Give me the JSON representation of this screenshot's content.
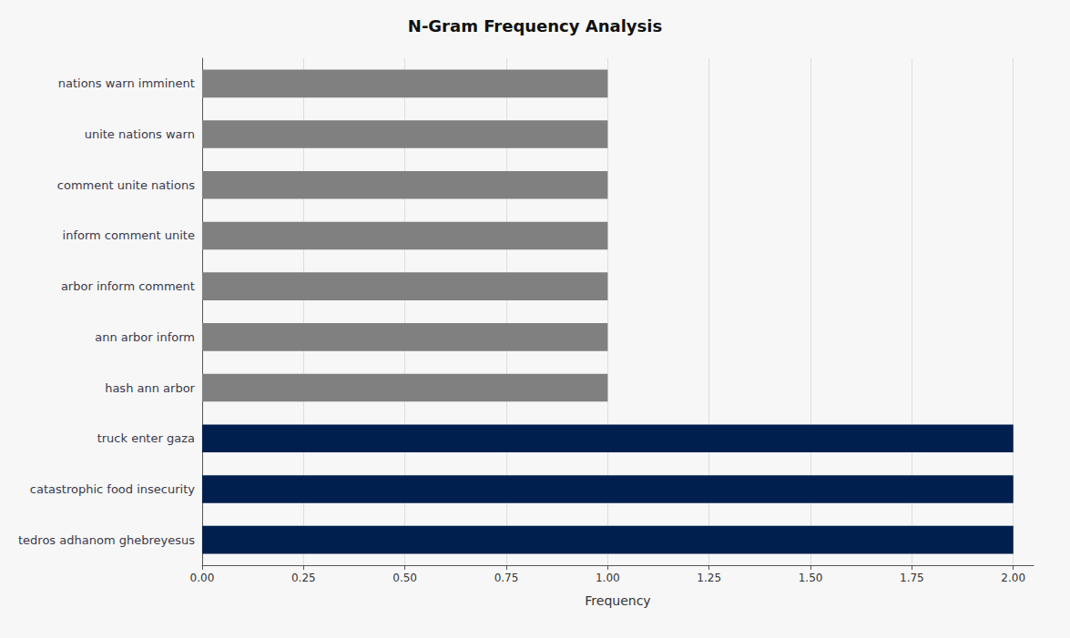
{
  "chart_data": {
    "type": "bar",
    "orientation": "horizontal",
    "title": "N-Gram Frequency Analysis",
    "xlabel": "Frequency",
    "categories": [
      "nations warn imminent",
      "unite nations warn",
      "comment unite nations",
      "inform comment unite",
      "arbor inform comment",
      "ann arbor inform",
      "hash ann arbor",
      "truck enter gaza",
      "catastrophic food insecurity",
      "tedros adhanom ghebreyesus"
    ],
    "values": [
      1,
      1,
      1,
      1,
      1,
      1,
      1,
      2,
      2,
      2
    ],
    "colors": [
      "#808080",
      "#808080",
      "#808080",
      "#808080",
      "#808080",
      "#808080",
      "#808080",
      "#001f4e",
      "#001f4e",
      "#001f4e"
    ],
    "xlim": [
      0,
      2.05
    ],
    "xticks": [
      {
        "value": 0,
        "label": "0.00"
      },
      {
        "value": 0.25,
        "label": "0.25"
      },
      {
        "value": 0.5,
        "label": "0.50"
      },
      {
        "value": 0.75,
        "label": "0.75"
      },
      {
        "value": 1,
        "label": "1.00"
      },
      {
        "value": 1.25,
        "label": "1.25"
      },
      {
        "value": 1.5,
        "label": "1.50"
      },
      {
        "value": 1.75,
        "label": "1.75"
      },
      {
        "value": 2,
        "label": "2.00"
      }
    ],
    "grid": true
  }
}
